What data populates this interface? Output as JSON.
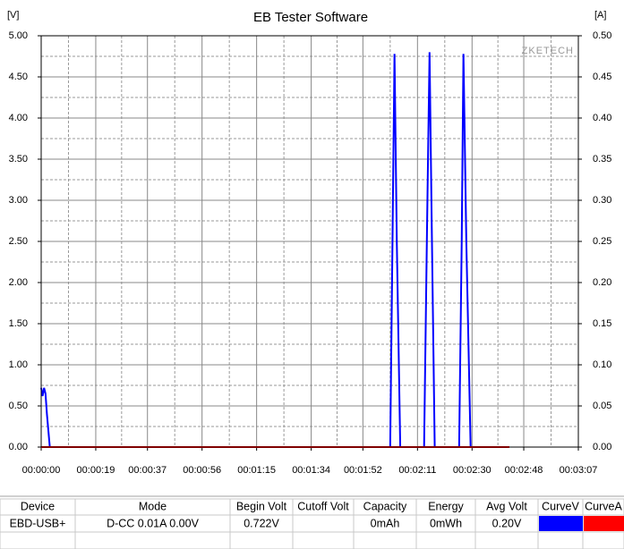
{
  "chart_data": {
    "type": "line",
    "title": "EB Tester Software",
    "y_label": "[V]",
    "y2_label": "[A]",
    "watermark": "ZKETECH",
    "xlim": [
      0,
      187
    ],
    "xticks": [
      {
        "value": 0,
        "label": "00:00:00"
      },
      {
        "value": 19,
        "label": "00:00:19"
      },
      {
        "value": 37,
        "label": "00:00:37"
      },
      {
        "value": 56,
        "label": "00:00:56"
      },
      {
        "value": 75,
        "label": "00:01:15"
      },
      {
        "value": 94,
        "label": "00:01:34"
      },
      {
        "value": 112,
        "label": "00:01:52"
      },
      {
        "value": 131,
        "label": "00:02:11"
      },
      {
        "value": 150,
        "label": "00:02:30"
      },
      {
        "value": 168,
        "label": "00:02:48"
      },
      {
        "value": 187,
        "label": "00:03:07"
      }
    ],
    "ylim": [
      0,
      5
    ],
    "yticks": [
      {
        "value": 0,
        "label": "0.00"
      },
      {
        "value": 0.5,
        "label": "0.50"
      },
      {
        "value": 1,
        "label": "1.00"
      },
      {
        "value": 1.5,
        "label": "1.50"
      },
      {
        "value": 2,
        "label": "2.00"
      },
      {
        "value": 2.5,
        "label": "2.50"
      },
      {
        "value": 3,
        "label": "3.00"
      },
      {
        "value": 3.5,
        "label": "3.50"
      },
      {
        "value": 4,
        "label": "4.00"
      },
      {
        "value": 4.5,
        "label": "4.50"
      },
      {
        "value": 5,
        "label": "5.00"
      }
    ],
    "y2lim": [
      0,
      0.5
    ],
    "y2ticks": [
      {
        "value": 0,
        "label": "0.00"
      },
      {
        "value": 0.05,
        "label": "0.05"
      },
      {
        "value": 0.1,
        "label": "0.10"
      },
      {
        "value": 0.15,
        "label": "0.15"
      },
      {
        "value": 0.2,
        "label": "0.20"
      },
      {
        "value": 0.25,
        "label": "0.25"
      },
      {
        "value": 0.3,
        "label": "0.30"
      },
      {
        "value": 0.35,
        "label": "0.35"
      },
      {
        "value": 0.4,
        "label": "0.40"
      },
      {
        "value": 0.45,
        "label": "0.45"
      },
      {
        "value": 0.5,
        "label": "0.50"
      }
    ],
    "grid": true,
    "series": [
      {
        "color": "#0000ff",
        "x": [
          0,
          0.5,
          1,
          1.5,
          2,
          3,
          121.5,
          122.3,
          123,
          123.8,
          125,
          133.3,
          134.3,
          135.2,
          136,
          137,
          145.5,
          146.4,
          147,
          148,
          149.5,
          163
        ],
        "values": [
          0.72,
          0.62,
          0.72,
          0.65,
          0.4,
          0,
          0,
          2.5,
          4.78,
          2.5,
          0,
          0,
          2.6,
          4.8,
          2.6,
          0,
          0,
          2.5,
          4.78,
          2.5,
          0,
          0
        ]
      },
      {
        "color": "#ff0000",
        "axis": "y2",
        "x": [
          0,
          163
        ],
        "values": [
          0,
          0
        ]
      }
    ]
  },
  "table": {
    "headers": [
      "Device",
      "Mode",
      "Begin Volt",
      "Cutoff Volt",
      "Capacity",
      "Energy",
      "Avg Volt",
      "CurveV",
      "CurveA"
    ],
    "row": {
      "device": "EBD-USB+",
      "mode": "D-CC  0.01A  0.00V",
      "begin_volt": "0.722V",
      "capacity": "0mAh",
      "energy": "0mWh",
      "avg_volt": "0.20V"
    }
  }
}
